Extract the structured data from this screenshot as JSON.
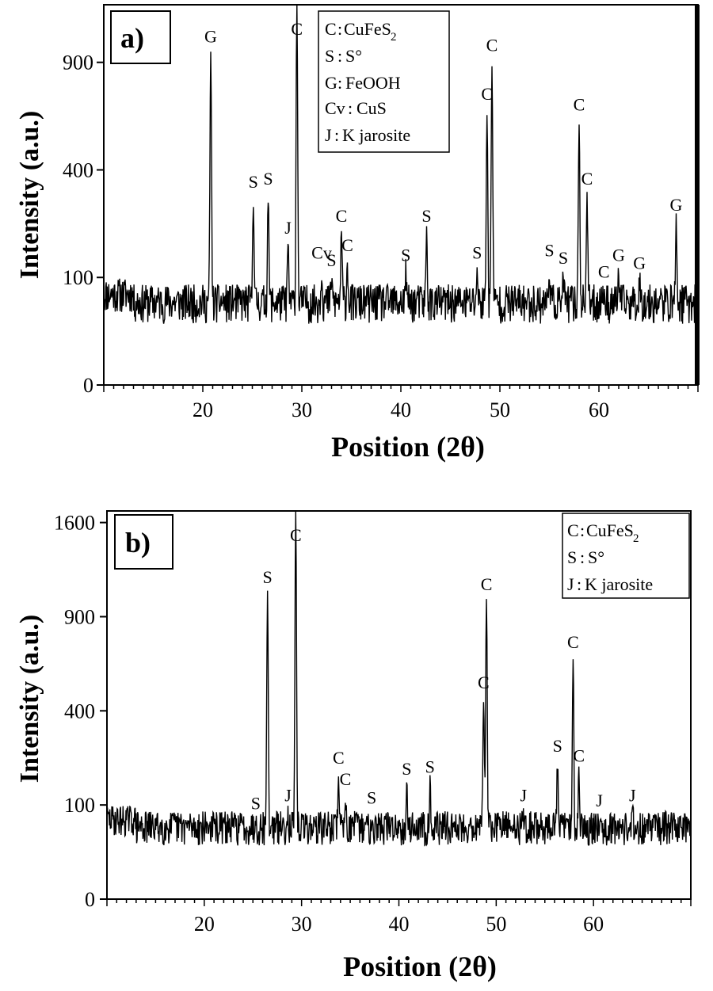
{
  "chart_data": [
    {
      "type": "line",
      "panel_label": "a)",
      "xlabel": "Position (2θ)",
      "ylabel": "Intensity (a.u.)",
      "xlim": [
        10,
        70
      ],
      "ylim": [
        0,
        1250
      ],
      "y_scale": "sqrt",
      "y_ticks": [
        0,
        100,
        400,
        900
      ],
      "x_ticks": [
        20,
        30,
        40,
        50,
        60
      ],
      "grid": false,
      "legend_position": "top-center",
      "legend": [
        {
          "symbol": "C",
          "phase": "CuFeS",
          "subscript": "2"
        },
        {
          "symbol": "S",
          "phase": "S°"
        },
        {
          "symbol": "G",
          "phase": "FeOOH"
        },
        {
          "symbol": "Cv",
          "phase": "CuS"
        },
        {
          "symbol": "J",
          "phase": "K jarosite"
        }
      ],
      "baseline": 60,
      "peaks": [
        {
          "x": 20.8,
          "y": 950,
          "label": "G"
        },
        {
          "x": 25.1,
          "y": 300,
          "label": "S"
        },
        {
          "x": 26.6,
          "y": 310,
          "label": "S"
        },
        {
          "x": 28.6,
          "y": 170,
          "label": "J"
        },
        {
          "x": 29.5,
          "y": 1250,
          "label": "C"
        },
        {
          "x": 32.0,
          "y": 115,
          "label": "Cv"
        },
        {
          "x": 33.0,
          "y": 100,
          "label": "S"
        },
        {
          "x": 34.0,
          "y": 200,
          "label": "C"
        },
        {
          "x": 34.6,
          "y": 130,
          "label": "C"
        },
        {
          "x": 40.5,
          "y": 110,
          "label": "S"
        },
        {
          "x": 42.6,
          "y": 200,
          "label": "S"
        },
        {
          "x": 47.7,
          "y": 115,
          "label": "S"
        },
        {
          "x": 48.7,
          "y": 650,
          "label": "C"
        },
        {
          "x": 49.2,
          "y": 900,
          "label": "C"
        },
        {
          "x": 55.0,
          "y": 120,
          "label": "S"
        },
        {
          "x": 56.4,
          "y": 105,
          "label": "S"
        },
        {
          "x": 58.0,
          "y": 600,
          "label": "C"
        },
        {
          "x": 58.8,
          "y": 310,
          "label": "C"
        },
        {
          "x": 60.5,
          "y": 80,
          "label": "C"
        },
        {
          "x": 62.0,
          "y": 110,
          "label": "G"
        },
        {
          "x": 64.1,
          "y": 95,
          "label": "G"
        },
        {
          "x": 67.8,
          "y": 230,
          "label": "G"
        }
      ]
    },
    {
      "type": "line",
      "panel_label": "b)",
      "xlabel": "Position (2θ)",
      "ylabel": "Intensity (a.u.)",
      "xlim": [
        10,
        70
      ],
      "ylim": [
        0,
        1700
      ],
      "y_scale": "sqrt",
      "y_ticks": [
        0,
        100,
        400,
        900,
        1600
      ],
      "x_ticks": [
        20,
        30,
        40,
        50,
        60
      ],
      "grid": false,
      "legend_position": "top-right",
      "legend": [
        {
          "symbol": "C",
          "phase": "CuFeS",
          "subscript": "2"
        },
        {
          "symbol": "S",
          "phase": "S°"
        },
        {
          "symbol": "J",
          "phase": "K jarosite"
        }
      ],
      "baseline": 60,
      "peaks": [
        {
          "x": 25.3,
          "y": 70,
          "label": "S"
        },
        {
          "x": 26.5,
          "y": 1050,
          "label": "S"
        },
        {
          "x": 28.6,
          "y": 85,
          "label": "J"
        },
        {
          "x": 29.4,
          "y": 1700,
          "label": "C"
        },
        {
          "x": 33.8,
          "y": 175,
          "label": "C"
        },
        {
          "x": 34.5,
          "y": 120,
          "label": "C"
        },
        {
          "x": 37.2,
          "y": 80,
          "label": "S"
        },
        {
          "x": 40.8,
          "y": 145,
          "label": "S"
        },
        {
          "x": 43.2,
          "y": 150,
          "label": "S"
        },
        {
          "x": 48.7,
          "y": 450,
          "label": "C"
        },
        {
          "x": 49.0,
          "y": 1000,
          "label": "C"
        },
        {
          "x": 52.8,
          "y": 85,
          "label": "J"
        },
        {
          "x": 56.3,
          "y": 210,
          "label": "S"
        },
        {
          "x": 57.9,
          "y": 650,
          "label": "C"
        },
        {
          "x": 58.5,
          "y": 180,
          "label": "C"
        },
        {
          "x": 60.6,
          "y": 75,
          "label": "J"
        },
        {
          "x": 64.0,
          "y": 85,
          "label": "J"
        }
      ]
    }
  ]
}
